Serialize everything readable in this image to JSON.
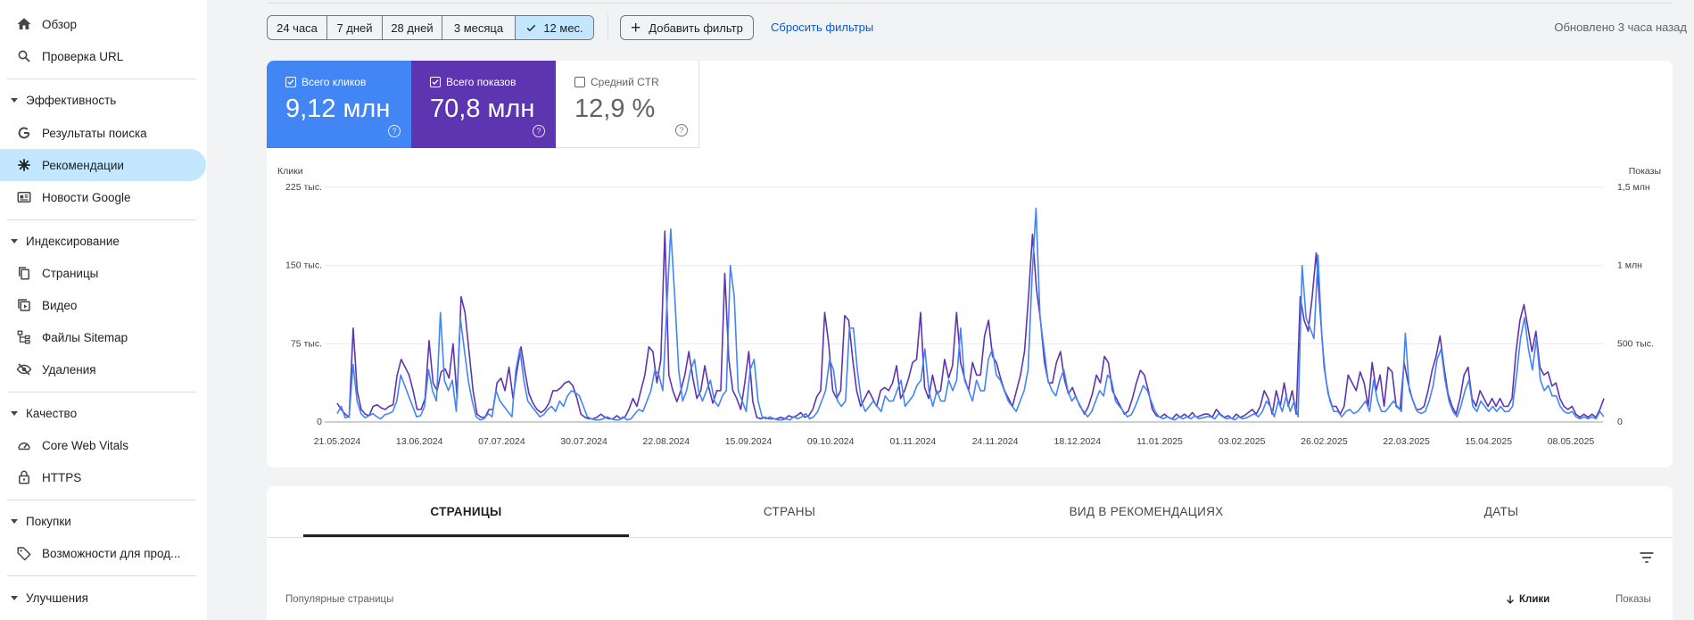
{
  "sidebar": {
    "overview": "Обзор",
    "url_inspection": "Проверка URL",
    "performance": {
      "title": "Эффективность",
      "items": [
        "Результаты поиска",
        "Рекомендации",
        "Новости Google"
      ]
    },
    "indexing": {
      "title": "Индексирование",
      "items": [
        "Страницы",
        "Видео",
        "Файлы Sitemap",
        "Удаления"
      ]
    },
    "experience": {
      "title": "Качество",
      "items": [
        "Core Web Vitals",
        "HTTPS"
      ]
    },
    "shopping": {
      "title": "Покупки",
      "items": [
        "Возможности для прод..."
      ]
    },
    "enhancements": {
      "title": "Улучшения"
    }
  },
  "toolbar": {
    "ranges": [
      "24 часа",
      "7 дней",
      "28 дней",
      "3 месяца",
      "12 мес."
    ],
    "selected_range": "12 мес.",
    "add_filter": "Добавить фильтр",
    "reset_filters": "Сбросить фильтры",
    "updated": "Обновлено 3 часа назад"
  },
  "metrics": {
    "clicks": {
      "label": "Всего кликов",
      "value": "9,12 млн",
      "checked": true,
      "color": "#4285f4"
    },
    "impressions": {
      "label": "Всего показов",
      "value": "70,8 млн",
      "checked": true,
      "color": "#5e35b1"
    },
    "ctr": {
      "label": "Средний CTR",
      "value": "12,9 %",
      "checked": false
    }
  },
  "chart_data": {
    "type": "line",
    "left_axis_title": "Клики",
    "right_axis_title": "Показы",
    "left_ticks": [
      "0",
      "75 тыс.",
      "150 тыс.",
      "225 тыс."
    ],
    "right_ticks": [
      "0",
      "500 тыс.",
      "1 млн",
      "1,5 млн"
    ],
    "ylim_left": [
      0,
      225000
    ],
    "ylim_right": [
      0,
      1500000
    ],
    "grid": true,
    "x_labels": [
      "21.05.2024",
      "13.06.2024",
      "07.07.2024",
      "30.07.2024",
      "22.08.2024",
      "15.09.2024",
      "09.10.2024",
      "01.11.2024",
      "24.11.2024",
      "18.12.2024",
      "11.01.2025",
      "03.02.2025",
      "26.02.2025",
      "22.03.2025",
      "15.04.2025",
      "08.05.2025"
    ],
    "series": [
      {
        "name": "Всего кликов",
        "axis": "left",
        "color": "#4285f4",
        "values": [
          8000,
          15000,
          4000,
          5000,
          55000,
          20000,
          8000,
          4000,
          6000,
          8000,
          5000,
          3000,
          7000,
          8000,
          10000,
          20000,
          45000,
          35000,
          25000,
          15000,
          5000,
          6000,
          15000,
          50000,
          30000,
          20000,
          105000,
          40000,
          30000,
          40000,
          10000,
          100000,
          70000,
          40000,
          20000,
          5000,
          2000,
          3000,
          8000,
          5000,
          30000,
          20000,
          15000,
          10000,
          5000,
          50000,
          70000,
          40000,
          20000,
          15000,
          10000,
          5000,
          7000,
          12000,
          15000,
          10000,
          20000,
          15000,
          25000,
          30000,
          28000,
          25000,
          15000,
          5000,
          3000,
          2000,
          2000,
          3000,
          5000,
          3000,
          2000,
          2000,
          5000,
          2000,
          3000,
          8000,
          12000,
          10000,
          20000,
          30000,
          50000,
          45000,
          30000,
          110000,
          185000,
          120000,
          50000,
          20000,
          30000,
          50000,
          60000,
          30000,
          20000,
          30000,
          40000,
          20000,
          15000,
          25000,
          30000,
          150000,
          120000,
          30000,
          20000,
          10000,
          50000,
          60000,
          20000,
          5000,
          3000,
          5000,
          3000,
          2000,
          2000,
          3000,
          2000,
          5000,
          3000,
          5000,
          8000,
          3000,
          5000,
          10000,
          20000,
          30000,
          60000,
          50000,
          20000,
          15000,
          20000,
          90000,
          90000,
          50000,
          20000,
          10000,
          15000,
          20000,
          15000,
          10000,
          25000,
          20000,
          20000,
          30000,
          40000,
          15000,
          20000,
          25000,
          35000,
          40000,
          70000,
          30000,
          15000,
          30000,
          20000,
          20000,
          40000,
          30000,
          40000,
          90000,
          40000,
          30000,
          20000,
          40000,
          30000,
          30000,
          60000,
          70000,
          45000,
          40000,
          30000,
          20000,
          15000,
          10000,
          20000,
          30000,
          50000,
          140000,
          205000,
          100000,
          70000,
          40000,
          30000,
          25000,
          40000,
          50000,
          30000,
          20000,
          25000,
          15000,
          10000,
          5000,
          10000,
          20000,
          30000,
          25000,
          45000,
          40000,
          20000,
          15000,
          10000,
          5000,
          7000,
          15000,
          25000,
          35000,
          30000,
          20000,
          10000,
          5000,
          3000,
          5000,
          3000,
          2000,
          5000,
          3000,
          5000,
          3000,
          6000,
          3000,
          4000,
          5000,
          5000,
          3000,
          8000,
          5000,
          3000,
          4000,
          2000,
          5000,
          3000,
          4000,
          6000,
          8000,
          5000,
          10000,
          20000,
          15000,
          5000,
          20000,
          10000,
          25000,
          10000,
          20000,
          5000,
          150000,
          100000,
          90000,
          80000,
          160000,
          80000,
          40000,
          20000,
          10000,
          10000,
          5000,
          10000,
          12000,
          8000,
          10000,
          15000,
          20000,
          10000,
          40000,
          20000,
          10000,
          10000,
          15000,
          20000,
          15000,
          10000,
          85000,
          30000,
          20000,
          10000,
          8000,
          10000,
          20000,
          35000,
          60000,
          70000,
          40000,
          20000,
          10000,
          5000,
          15000,
          30000,
          40000,
          15000,
          10000,
          20000,
          15000,
          10000,
          15000,
          10000,
          15000,
          10000,
          10000,
          15000,
          45000,
          80000,
          100000,
          70000,
          50000,
          80000,
          40000,
          30000,
          35000,
          25000,
          25000,
          15000,
          10000,
          8000,
          10000,
          5000,
          3000,
          5000,
          3000,
          5000,
          3000,
          10000,
          5000
        ],
        "approx": true
      },
      {
        "name": "Всего показов",
        "axis": "right",
        "color": "#5e35b1",
        "values": [
          120000,
          80000,
          50000,
          30000,
          600000,
          200000,
          80000,
          50000,
          40000,
          100000,
          110000,
          90000,
          80000,
          100000,
          110000,
          300000,
          400000,
          350000,
          300000,
          200000,
          80000,
          80000,
          150000,
          520000,
          250000,
          200000,
          320000,
          340000,
          280000,
          500000,
          150000,
          800000,
          700000,
          450000,
          200000,
          50000,
          30000,
          30000,
          80000,
          80000,
          250000,
          280000,
          200000,
          350000,
          150000,
          330000,
          480000,
          320000,
          180000,
          120000,
          80000,
          60000,
          80000,
          120000,
          200000,
          200000,
          220000,
          250000,
          260000,
          230000,
          150000,
          50000,
          30000,
          20000,
          20000,
          30000,
          50000,
          30000,
          20000,
          20000,
          40000,
          20000,
          30000,
          80000,
          150000,
          100000,
          200000,
          300000,
          480000,
          450000,
          250000,
          400000,
          1220000,
          300000,
          200000,
          130000,
          200000,
          300000,
          450000,
          280000,
          150000,
          200000,
          360000,
          220000,
          120000,
          200000,
          200000,
          950000,
          400000,
          200000,
          150000,
          80000,
          250000,
          450000,
          130000,
          30000,
          20000,
          30000,
          20000,
          20000,
          20000,
          30000,
          20000,
          40000,
          30000,
          40000,
          60000,
          30000,
          40000,
          80000,
          160000,
          200000,
          700000,
          500000,
          200000,
          150000,
          200000,
          680000,
          650000,
          400000,
          200000,
          100000,
          150000,
          200000,
          150000,
          100000,
          200000,
          220000,
          200000,
          250000,
          360000,
          150000,
          200000,
          280000,
          380000,
          400000,
          700000,
          220000,
          150000,
          300000,
          180000,
          200000,
          400000,
          280000,
          360000,
          700000,
          380000,
          280000,
          200000,
          380000,
          300000,
          300000,
          550000,
          650000,
          420000,
          380000,
          280000,
          200000,
          150000,
          100000,
          200000,
          300000,
          450000,
          800000,
          1200000,
          850000,
          650000,
          380000,
          250000,
          250000,
          380000,
          450000,
          270000,
          180000,
          220000,
          150000,
          100000,
          50000,
          100000,
          180000,
          300000,
          250000,
          420000,
          380000,
          200000,
          150000,
          100000,
          50000,
          70000,
          150000,
          250000,
          330000,
          300000,
          200000,
          80000,
          40000,
          30000,
          50000,
          30000,
          20000,
          50000,
          30000,
          50000,
          30000,
          60000,
          30000,
          40000,
          50000,
          50000,
          30000,
          80000,
          50000,
          30000,
          40000,
          20000,
          50000,
          30000,
          40000,
          60000,
          80000,
          50000,
          100000,
          200000,
          150000,
          50000,
          200000,
          100000,
          250000,
          100000,
          200000,
          50000,
          800000,
          650000,
          580000,
          800000,
          1080000,
          700000,
          350000,
          180000,
          100000,
          100000,
          50000,
          100000,
          300000,
          250000,
          200000,
          320000,
          250000,
          100000,
          380000,
          200000,
          300000,
          100000,
          350000,
          320000,
          100000,
          80000,
          380000,
          250000,
          150000,
          80000,
          80000,
          100000,
          200000,
          330000,
          420000,
          550000,
          350000,
          180000,
          100000,
          50000,
          150000,
          300000,
          350000,
          150000,
          100000,
          200000,
          150000,
          100000,
          150000,
          100000,
          150000,
          100000,
          100000,
          150000,
          450000,
          650000,
          750000,
          600000,
          450000,
          580000,
          350000,
          300000,
          320000,
          230000,
          250000,
          150000,
          100000,
          80000,
          100000,
          50000,
          30000,
          50000,
          30000,
          50000,
          30000,
          80000,
          150000
        ],
        "approx": true
      }
    ]
  },
  "tabs": {
    "items": [
      "СТРАНИЦЫ",
      "СТРАНЫ",
      "ВИД В РЕКОМЕНДАЦИЯХ",
      "ДАТЫ"
    ],
    "active": 0
  },
  "table": {
    "col_pages": "Популярные страницы",
    "col_clicks": "Клики",
    "col_impressions": "Показы"
  }
}
